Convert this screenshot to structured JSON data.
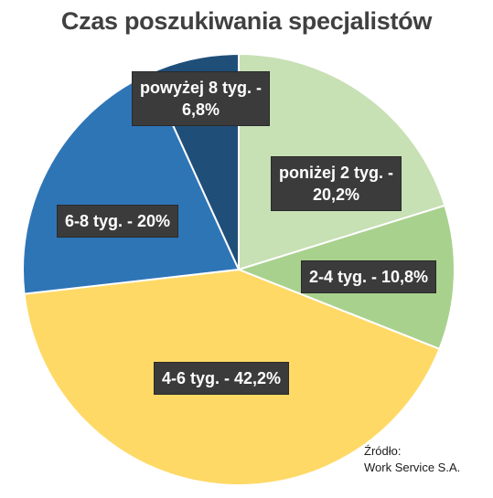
{
  "chart_data": {
    "type": "pie",
    "title": "Czas poszukiwania specjalistów",
    "slices": [
      {
        "label_line1": "poniżej 2 tyg. -",
        "label_line2": "20,2%",
        "value": 20.2,
        "color": "#c7e0b4"
      },
      {
        "label_line1": "2-4 tyg. - 10,8%",
        "label_line2": "",
        "value": 10.8,
        "color": "#a9d18e"
      },
      {
        "label_line1": "4-6 tyg. - 42,2%",
        "label_line2": "",
        "value": 42.2,
        "color": "#ffd966"
      },
      {
        "label_line1": "6-8 tyg. - 20%",
        "label_line2": "",
        "value": 20.0,
        "color": "#2e75b6"
      },
      {
        "label_line1": "powyżej 8 tyg. -",
        "label_line2": "6,8%",
        "value": 6.8,
        "color": "#1f4e79"
      }
    ]
  },
  "source": {
    "line1": "Źródło:",
    "line2": "Work Service S.A."
  }
}
